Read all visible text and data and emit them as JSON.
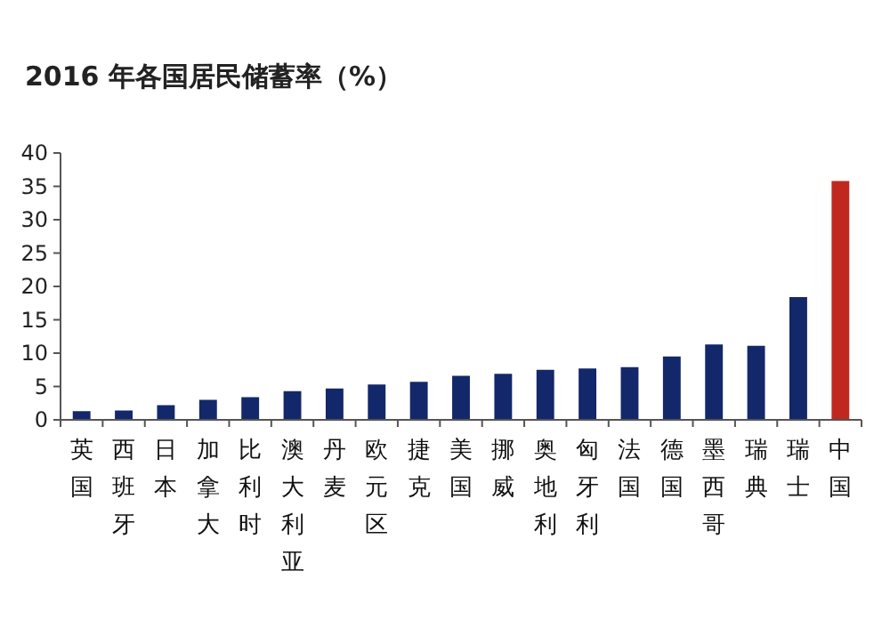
{
  "chart_data": {
    "type": "bar",
    "title": "2016 年各国居民储蓄率（%）",
    "categories": [
      "英国",
      "西班牙",
      "日本",
      "加拿大",
      "比利时",
      "澳大利亚",
      "丹麦",
      "欧元区",
      "捷克",
      "美国",
      "挪威",
      "奥地利",
      "匈牙利",
      "法国",
      "德国",
      "墨西哥",
      "瑞典",
      "瑞士",
      "中国"
    ],
    "values": [
      1.3,
      1.4,
      2.2,
      3.0,
      3.4,
      4.3,
      4.7,
      5.3,
      5.7,
      6.6,
      6.9,
      7.5,
      7.7,
      7.9,
      9.5,
      11.3,
      11.1,
      18.4,
      35.8
    ],
    "colors": [
      "#13286a",
      "#13286a",
      "#13286a",
      "#13286a",
      "#13286a",
      "#13286a",
      "#13286a",
      "#13286a",
      "#13286a",
      "#13286a",
      "#13286a",
      "#13286a",
      "#13286a",
      "#13286a",
      "#13286a",
      "#13286a",
      "#13286a",
      "#13286a",
      "#c0281f"
    ],
    "ylim": [
      0,
      40
    ],
    "yticks": [
      0,
      5,
      10,
      15,
      20,
      25,
      30,
      35,
      40
    ],
    "grid": false
  }
}
